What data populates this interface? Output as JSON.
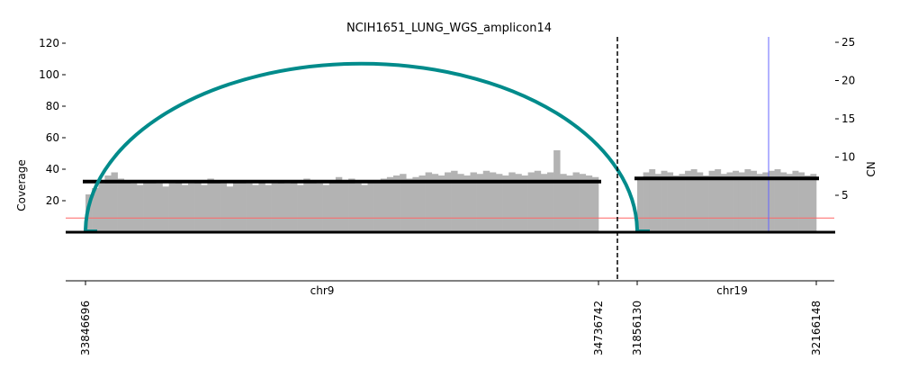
{
  "chart_data": {
    "type": "bar",
    "title": "NCIH1651_LUNG_WGS_amplicon14",
    "ylabel": "Coverage",
    "y2label": "CN",
    "ylim": [
      0,
      120
    ],
    "y2lim": [
      0,
      25
    ],
    "yticks": [
      20,
      40,
      60,
      80,
      100,
      120
    ],
    "y2ticks": [
      5,
      10,
      15,
      20,
      25
    ],
    "segments": [
      {
        "chrom": "chr9",
        "start": 33846696,
        "end": 34736742,
        "start_label": "33846696",
        "end_label": "34736742",
        "cn": 6.8,
        "coverage": [
          24,
          28,
          31,
          36,
          38,
          34,
          33,
          31,
          30,
          32,
          33,
          31,
          29,
          31,
          32,
          30,
          31,
          33,
          30,
          34,
          32,
          31,
          29,
          32,
          33,
          31,
          30,
          32,
          30,
          31,
          33,
          31,
          32,
          30,
          34,
          32,
          31,
          30,
          33,
          35,
          32,
          34,
          31,
          30,
          33,
          32,
          34,
          35,
          36,
          37,
          34,
          35,
          36,
          38,
          37,
          36,
          38,
          39,
          37,
          36,
          38,
          37,
          39,
          38,
          37,
          36,
          38,
          37,
          36,
          38,
          39,
          37,
          38,
          52,
          37,
          36,
          38,
          37,
          36,
          35
        ]
      },
      {
        "chrom": "chr19",
        "start": 31856130,
        "end": 32166148,
        "start_label": "31856130",
        "end_label": "32166148",
        "cn": 7.2,
        "coverage": [
          34,
          38,
          40,
          37,
          39,
          38,
          36,
          37,
          39,
          40,
          38,
          36,
          39,
          40,
          37,
          38,
          39,
          38,
          40,
          39,
          37,
          38,
          39,
          40,
          38,
          37,
          39,
          38,
          36,
          37
        ]
      }
    ],
    "threshold_coverage": 9,
    "breakpoint_edge": {
      "from": {
        "chrom": "chr9",
        "pos": 33846696
      },
      "to": {
        "chrom": "chr19",
        "pos": 31856130
      },
      "height_coverage": 107
    },
    "marker_line": {
      "chrom": "chr19",
      "pos": 32083600
    },
    "colors": {
      "coverage": "#b3b3b3",
      "edge": "#008b8b",
      "cn": "#000000",
      "threshold": "#ff6666",
      "marker": "#6666ff"
    }
  }
}
